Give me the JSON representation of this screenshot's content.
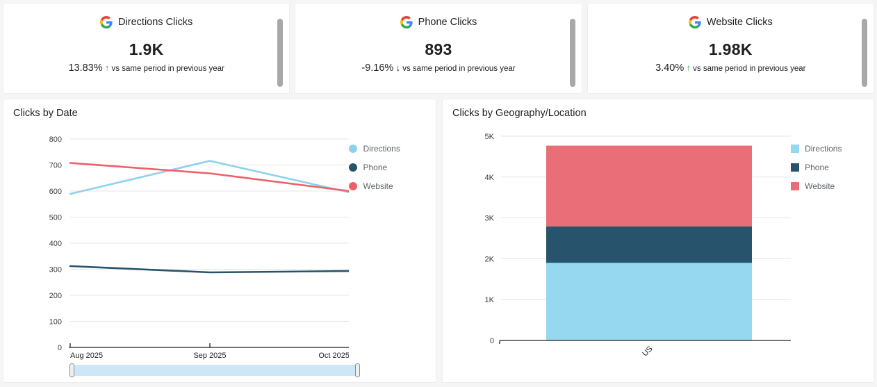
{
  "page": {
    "background": "#f5f5f6",
    "card_background": "#ffffff"
  },
  "kpi_cards": [
    {
      "icon": "google-logo",
      "title": "Directions Clicks",
      "value": "1.9K",
      "delta": "13.83%",
      "arrow": "↑",
      "arrow_color": "#2db24c",
      "compare_text": "vs same period in previous year"
    },
    {
      "icon": "google-logo",
      "title": "Phone Clicks",
      "value": "893",
      "delta": "-9.16%",
      "arrow": "↓",
      "arrow_color": "#212121",
      "compare_text": "vs same period in previous year"
    },
    {
      "icon": "google-logo",
      "title": "Website Clicks",
      "value": "1.98K",
      "delta": "3.40%",
      "arrow": "↑",
      "arrow_color": "#2db24c",
      "compare_text": "vs same period in previous year"
    }
  ],
  "chart_data": [
    {
      "type": "line",
      "title": "Clicks by Date",
      "x": [
        "Aug 2025",
        "Sep 2025",
        "Oct 2025"
      ],
      "series": [
        {
          "name": "Directions",
          "color": "#8dd2ec",
          "values": [
            589,
            716,
            595
          ]
        },
        {
          "name": "Phone",
          "color": "#27536c",
          "values": [
            312,
            288,
            293
          ]
        },
        {
          "name": "Website",
          "color": "#ec6069",
          "values": [
            708,
            668,
            600
          ]
        }
      ],
      "ylim": [
        0,
        800
      ],
      "yticks": [
        "0",
        "100",
        "200",
        "300",
        "400",
        "500",
        "600",
        "700",
        "800"
      ],
      "grid": true,
      "legend_position": "right",
      "legend_marker": "circle",
      "range_slider": true
    },
    {
      "type": "bar",
      "subtype": "stacked",
      "title": "Clicks by Geography/Location",
      "categories": [
        "US"
      ],
      "series": [
        {
          "name": "Directions",
          "color": "#95d8ef",
          "values": [
            1900
          ]
        },
        {
          "name": "Phone",
          "color": "#27536c",
          "values": [
            893
          ]
        },
        {
          "name": "Website",
          "color": "#ea6e77",
          "values": [
            1976
          ]
        }
      ],
      "ylim": [
        0,
        5000
      ],
      "yticks": [
        "0",
        "1K",
        "2K",
        "3K",
        "4K",
        "5K"
      ],
      "grid": true,
      "legend_position": "right",
      "legend_marker": "square"
    }
  ]
}
